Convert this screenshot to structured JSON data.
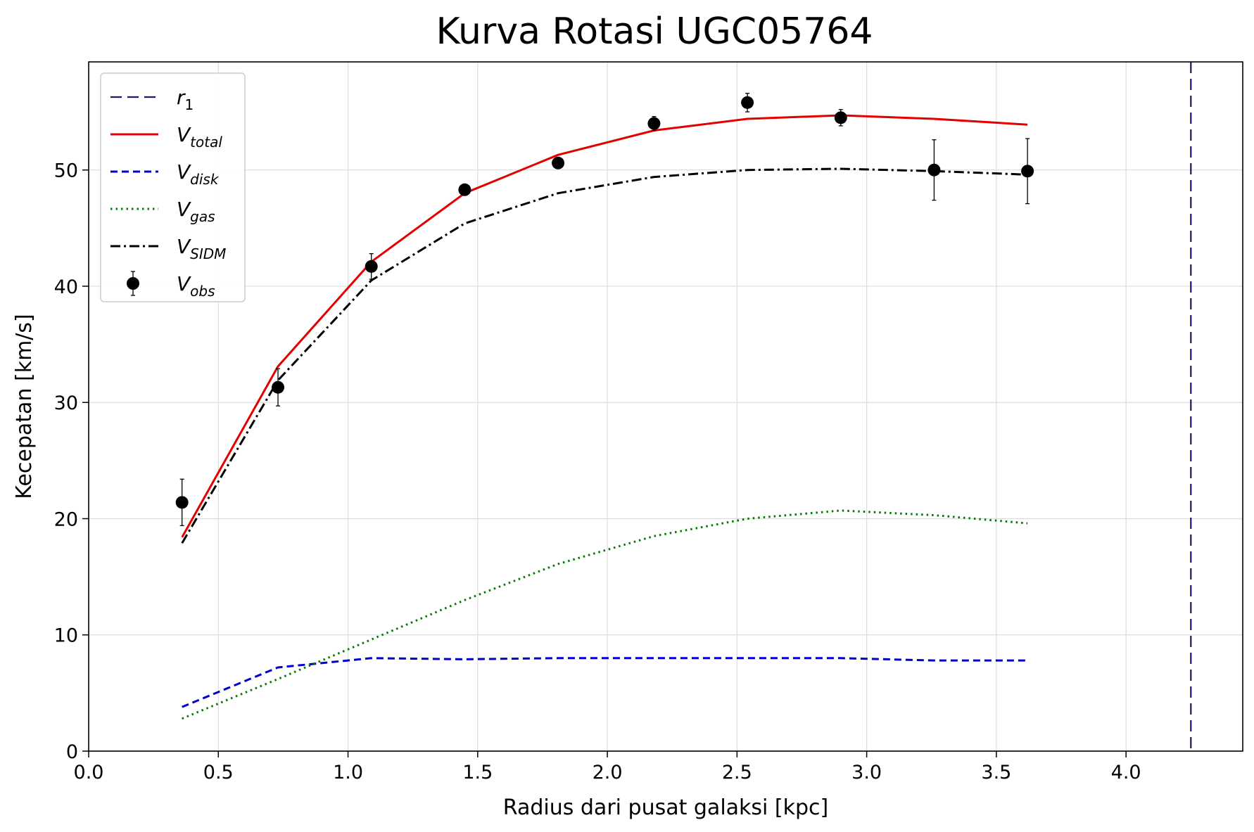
{
  "chart_data": {
    "type": "line",
    "title": "Kurva Rotasi UGC05764",
    "xlabel": "Radius dari pusat galaksi [kpc]",
    "ylabel": "Kecepatan [km/s]",
    "xlim": [
      0.0,
      4.45
    ],
    "ylim": [
      0,
      59.3
    ],
    "xticks": [
      0.0,
      0.5,
      1.0,
      1.5,
      2.0,
      2.5,
      3.0,
      3.5,
      4.0
    ],
    "xtick_labels": [
      "0.0",
      "0.5",
      "1.0",
      "1.5",
      "2.0",
      "2.5",
      "3.0",
      "3.5",
      "4.0"
    ],
    "yticks": [
      0,
      10,
      20,
      30,
      40,
      50
    ],
    "ytick_labels": [
      "0",
      "10",
      "20",
      "30",
      "40",
      "50"
    ],
    "grid": true,
    "legend_position": "top-left",
    "x": [
      0.36,
      0.73,
      1.09,
      1.45,
      1.81,
      2.18,
      2.54,
      2.9,
      3.26,
      3.62
    ],
    "series": [
      {
        "key": "r1",
        "legend_main": "r",
        "legend_sub": "1",
        "subscript_style": "normal",
        "style": "longdash",
        "color": "#191970",
        "type": "vline",
        "x_value": 4.25
      },
      {
        "key": "vtotal",
        "legend_main": "V",
        "legend_sub": "total",
        "subscript_style": "italic",
        "style": "solid",
        "color": "#e50000",
        "values": [
          18.4,
          33.1,
          42.1,
          48.0,
          51.3,
          53.4,
          54.4,
          54.7,
          54.4,
          53.9
        ]
      },
      {
        "key": "vdisk",
        "legend_main": "V",
        "legend_sub": "disk",
        "subscript_style": "italic",
        "style": "dashed",
        "color": "#0000cc",
        "values": [
          3.8,
          7.2,
          8.0,
          7.9,
          8.0,
          8.0,
          8.0,
          8.0,
          7.8,
          7.8
        ]
      },
      {
        "key": "vgas",
        "legend_main": "V",
        "legend_sub": "gas",
        "subscript_style": "italic",
        "style": "dotted",
        "color": "#007a00",
        "values": [
          2.8,
          6.2,
          9.6,
          13.0,
          16.1,
          18.5,
          20.0,
          20.7,
          20.3,
          19.6
        ]
      },
      {
        "key": "vsidm",
        "legend_main": "V",
        "legend_sub": "SIDM",
        "subscript_style": "italic",
        "style": "dashdot",
        "color": "#000000",
        "values": [
          17.9,
          31.9,
          40.5,
          45.4,
          48.0,
          49.4,
          50.0,
          50.1,
          49.9,
          49.6
        ]
      },
      {
        "key": "vobs",
        "legend_main": "V",
        "legend_sub": "obs",
        "subscript_style": "italic",
        "style": "errorbar",
        "color": "#000000",
        "values": [
          21.4,
          31.3,
          41.7,
          48.3,
          50.6,
          54.0,
          55.8,
          54.5,
          50.0,
          49.9
        ],
        "errors": [
          2.0,
          1.6,
          1.1,
          0.4,
          0.3,
          0.6,
          0.8,
          0.7,
          2.6,
          2.8
        ]
      }
    ]
  }
}
